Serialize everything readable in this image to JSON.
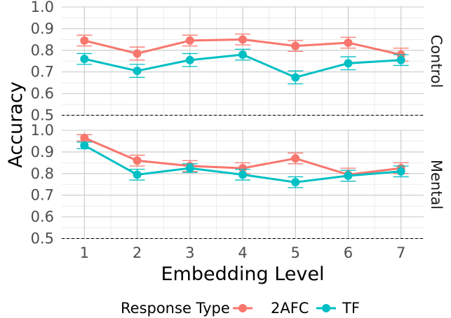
{
  "chart_data": {
    "type": "line",
    "xlabel": "Embedding Level",
    "ylabel": "Accuracy",
    "x": [
      1,
      2,
      3,
      4,
      5,
      6,
      7
    ],
    "x_ticks": [
      "1",
      "2",
      "3",
      "4",
      "5",
      "6",
      "7"
    ],
    "ylim": [
      0.5,
      1.0
    ],
    "y_ticks": [
      "0.5",
      "0.6",
      "0.7",
      "0.8",
      "0.9",
      "1.0"
    ],
    "grid": true,
    "reference_line": 0.5,
    "legend": {
      "title": "Response Type",
      "placement": "bottom",
      "entries": [
        "2AFC",
        "TF"
      ]
    },
    "series_colors": {
      "2AFC": "#F8766D",
      "TF": "#00BFC4"
    },
    "facets": [
      {
        "label": "Control",
        "series": [
          {
            "name": "2AFC",
            "values": [
              0.845,
              0.785,
              0.845,
              0.85,
              0.82,
              0.835,
              0.78
            ],
            "error": [
              0.025,
              0.03,
              0.025,
              0.025,
              0.025,
              0.025,
              0.03
            ]
          },
          {
            "name": "TF",
            "values": [
              0.76,
              0.705,
              0.755,
              0.78,
              0.675,
              0.74,
              0.755
            ],
            "error": [
              0.025,
              0.03,
              0.03,
              0.025,
              0.03,
              0.03,
              0.025
            ]
          }
        ]
      },
      {
        "label": "Mental",
        "series": [
          {
            "name": "2AFC",
            "values": [
              0.965,
              0.86,
              0.835,
              0.825,
              0.87,
              0.795,
              0.825
            ],
            "error": [
              0.015,
              0.025,
              0.025,
              0.025,
              0.025,
              0.03,
              0.025
            ]
          },
          {
            "name": "TF",
            "values": [
              0.93,
              0.795,
              0.825,
              0.795,
              0.76,
              0.79,
              0.81
            ],
            "error": [
              0.015,
              0.025,
              0.02,
              0.025,
              0.025,
              0.025,
              0.025
            ]
          }
        ]
      }
    ]
  }
}
